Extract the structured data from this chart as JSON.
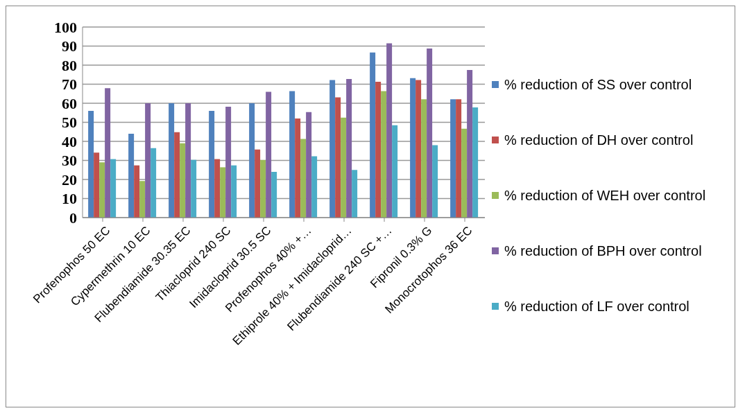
{
  "chart_data": {
    "type": "bar",
    "categories": [
      "Profenophos 50 EC",
      "Cypermethrin 10 EC",
      "Flubendiamide 30.35 EC",
      "Thiacloprid 240 SC",
      "Imidacloprid 30.5 SC",
      "Profenophos 40% +…",
      "Ethiprole  40% + Imidacloprid…",
      "Flubendiamide 240 SC +…",
      "Fipronil 0.3% G",
      "Monocrotophos 36 EC"
    ],
    "series": [
      {
        "name": "% reduction of SS over control",
        "color": "#4f81bd",
        "values": [
          56,
          44,
          60,
          56,
          60,
          66.4,
          72.2,
          86.6,
          73.2,
          62.1
        ]
      },
      {
        "name": "% reduction of DH over control",
        "color": "#c0504d",
        "values": [
          34.1,
          27.4,
          44.8,
          30.7,
          35.7,
          52,
          63.1,
          71.3,
          72.2,
          62.1
        ]
      },
      {
        "name": "% reduction of WEH over control",
        "color": "#9bbb59",
        "values": [
          29,
          19.2,
          39,
          26.4,
          30.2,
          41.3,
          52.5,
          66.4,
          62.1,
          46.6
        ]
      },
      {
        "name": "% reduction of BPH over control",
        "color": "#8064a2",
        "values": [
          67.9,
          60,
          60,
          58.2,
          66,
          55.4,
          72.7,
          91.5,
          88.7,
          77.5
        ]
      },
      {
        "name": "% reduction of LF over control",
        "color": "#4bacc6",
        "values": [
          30.7,
          36.5,
          30.3,
          27.4,
          24,
          32.2,
          25,
          48.5,
          38,
          57.8
        ]
      }
    ],
    "ylim": [
      0,
      100
    ],
    "yticks": [
      0,
      10,
      20,
      30,
      40,
      50,
      60,
      70,
      80,
      90,
      100
    ],
    "grid": "y",
    "legend": "right"
  }
}
